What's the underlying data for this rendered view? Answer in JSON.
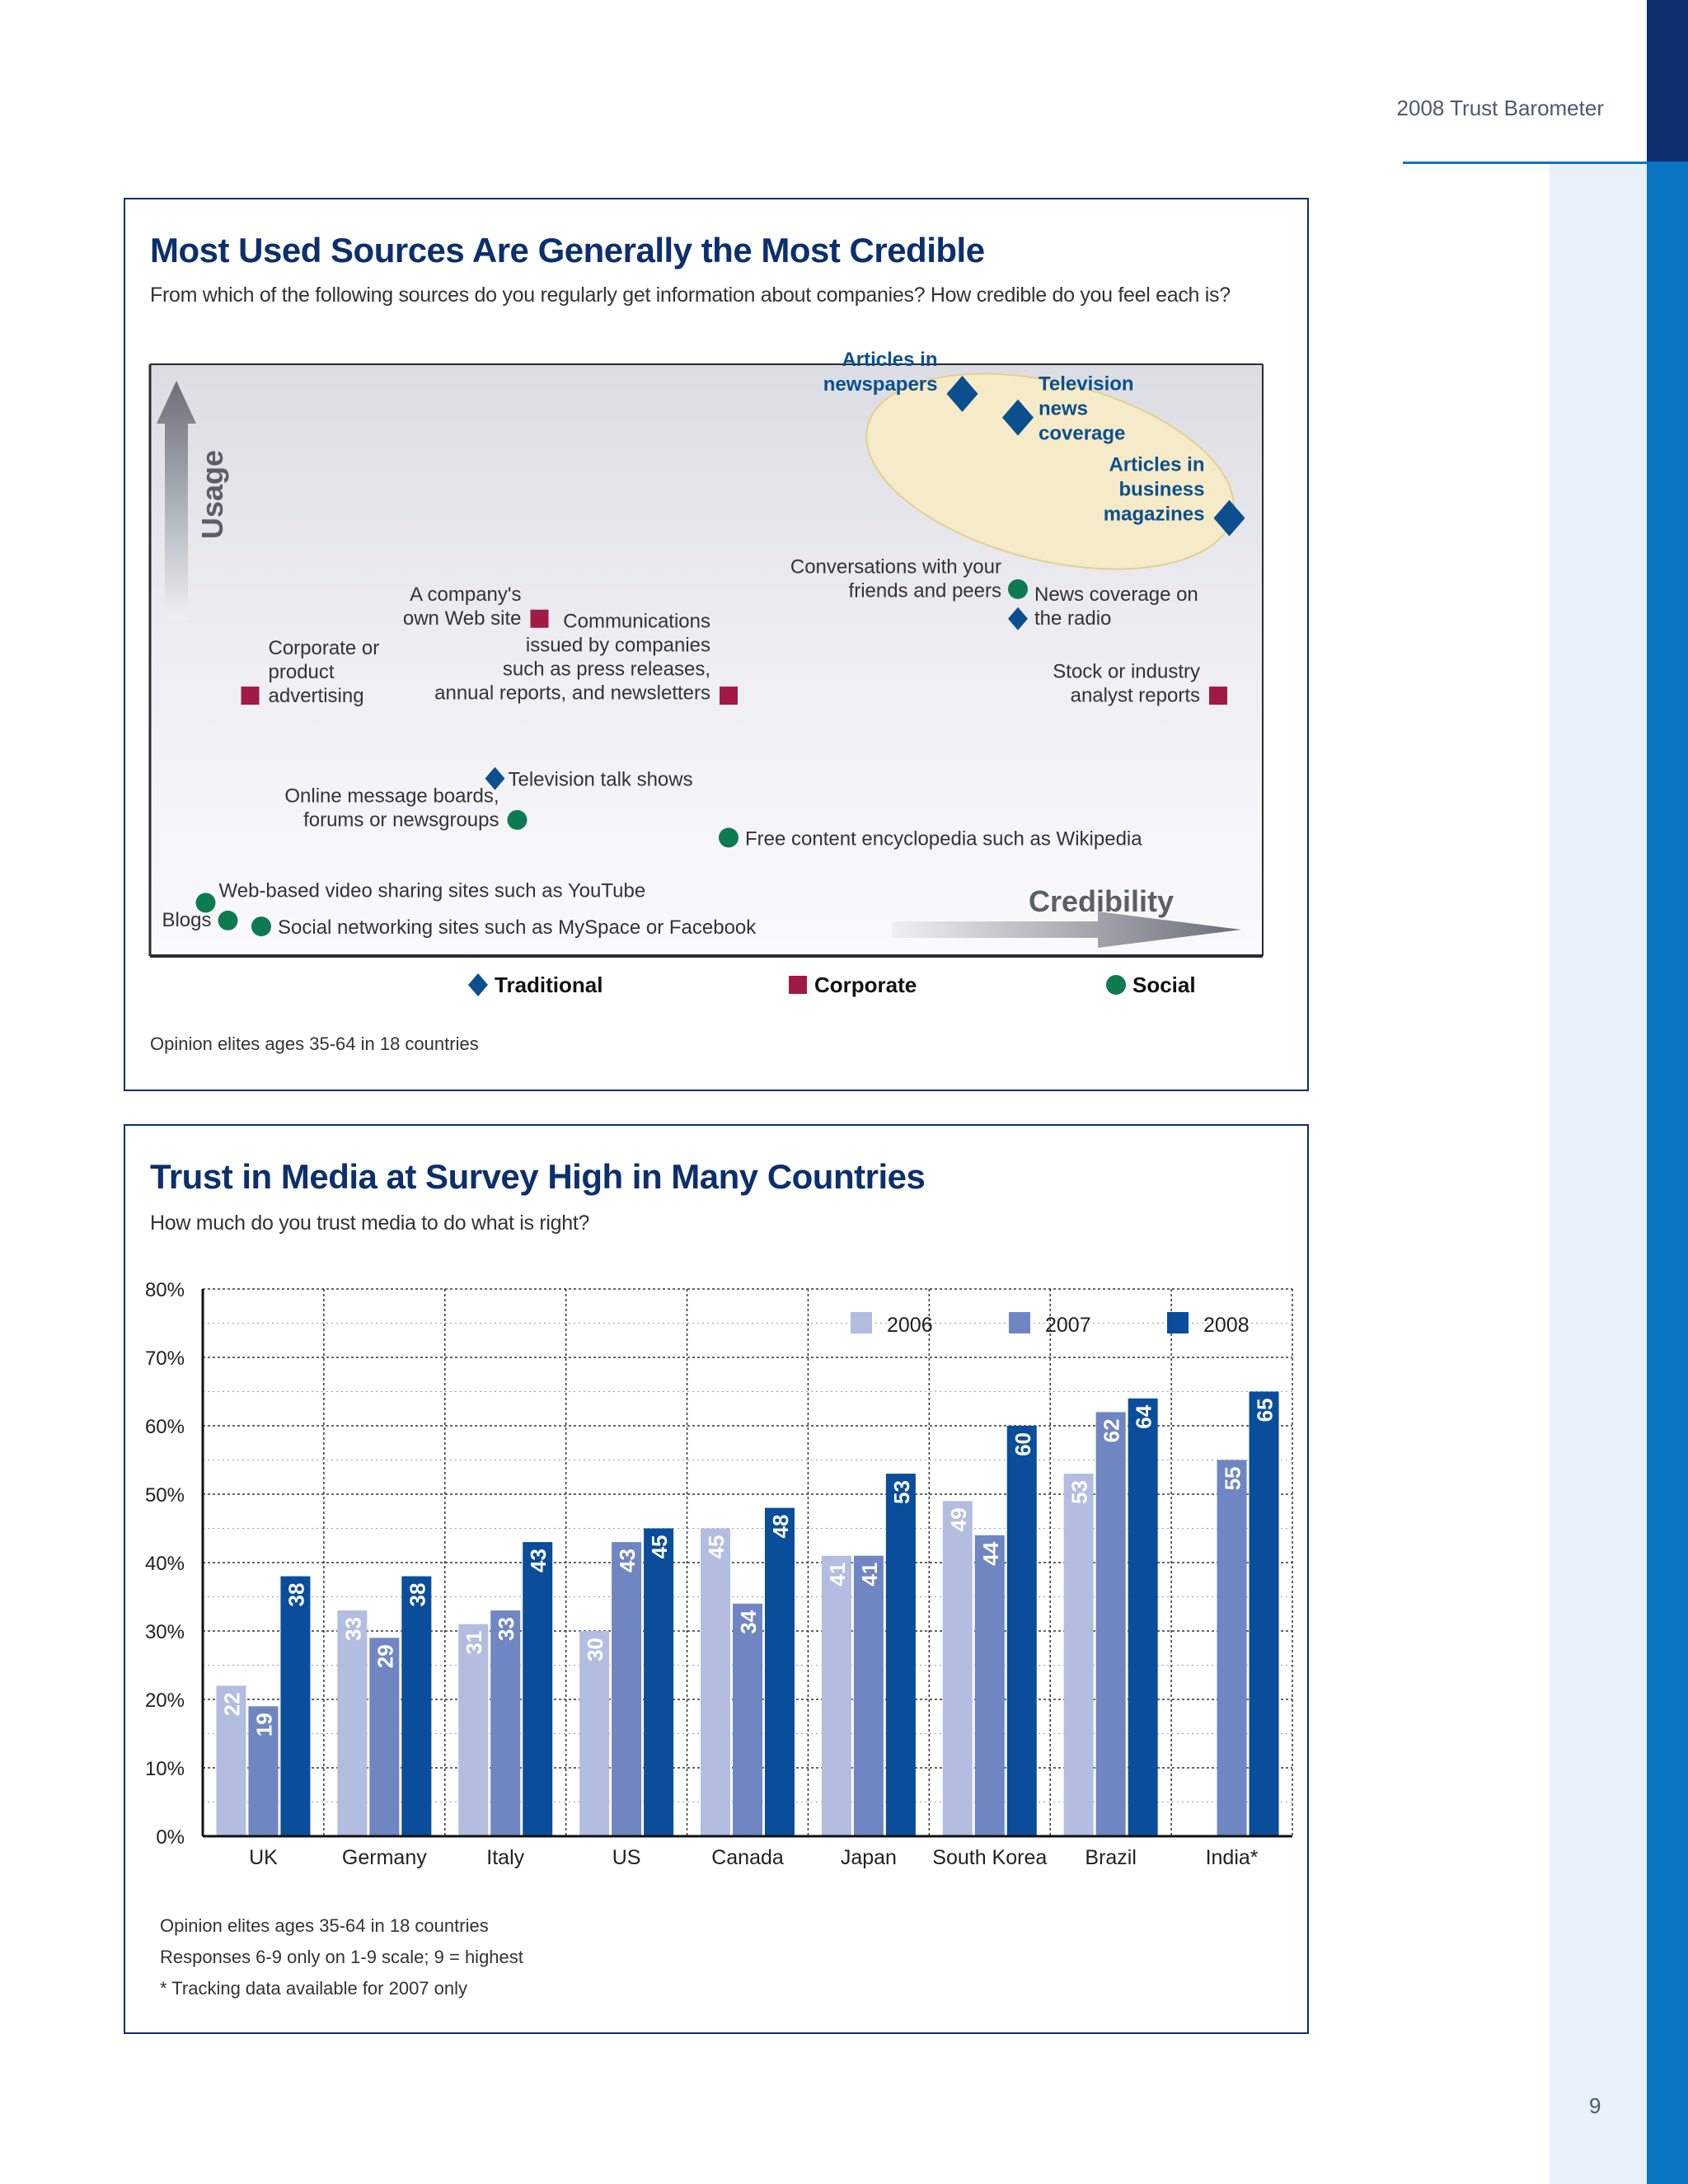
{
  "header": {
    "title": "2008 Trust Barometer",
    "page_number": "9"
  },
  "colors": {
    "navy": "#0c2f6e",
    "blue": "#0a76c4",
    "traditional": "#0c4f8f",
    "corporate": "#a01a45",
    "social": "#0e7a52",
    "bar_2006": "#b3bde0",
    "bar_2007": "#6f86c2",
    "bar_2008": "#0a4d9a",
    "highlight": "#f6ebc8"
  },
  "figure1": {
    "title": "Most Used Sources Are Generally the Most Credible",
    "subtitle": "From which of the following sources do you regularly get information about companies? How credible do you feel each is?",
    "y_axis_label": "Usage",
    "x_axis_label": "Credibility",
    "legend": [
      {
        "label": "Traditional",
        "shape": "diamond"
      },
      {
        "label": "Corporate",
        "shape": "square"
      },
      {
        "label": "Social",
        "shape": "circle"
      }
    ],
    "note": "Opinion elites ages 35-64 in 18 countries"
  },
  "chart_data": [
    {
      "type": "scatter",
      "title": "Most Used Sources Are Generally the Most Credible",
      "xlabel": "Credibility",
      "ylabel": "Usage",
      "xlim": [
        0,
        100
      ],
      "ylim": [
        0,
        100
      ],
      "points": [
        {
          "label": "Articles in newspapers",
          "category": "Traditional",
          "x": 73,
          "y": 95,
          "highlight": true
        },
        {
          "label": "Television news coverage",
          "category": "Traditional",
          "x": 78,
          "y": 91,
          "highlight": true
        },
        {
          "label": "Articles in business magazines",
          "category": "Traditional",
          "x": 97,
          "y": 74,
          "highlight": true
        },
        {
          "label": "Conversations with your friends and peers",
          "category": "Social",
          "x": 78,
          "y": 62
        },
        {
          "label": "News coverage on the radio",
          "category": "Traditional",
          "x": 78,
          "y": 57
        },
        {
          "label": "A company's own Web site",
          "category": "Corporate",
          "x": 35,
          "y": 57
        },
        {
          "label": "Corporate or product advertising",
          "category": "Corporate",
          "x": 9,
          "y": 44
        },
        {
          "label": "Communications issued by companies such as press releases, annual reports, and newsletters",
          "category": "Corporate",
          "x": 52,
          "y": 44
        },
        {
          "label": "Stock or industry analyst reports",
          "category": "Corporate",
          "x": 96,
          "y": 44
        },
        {
          "label": "Television talk shows",
          "category": "Traditional",
          "x": 31,
          "y": 30
        },
        {
          "label": "Online message boards, forums or newsgroups",
          "category": "Social",
          "x": 33,
          "y": 23
        },
        {
          "label": "Free content encyclopedia such as Wikipedia",
          "category": "Social",
          "x": 52,
          "y": 20
        },
        {
          "label": "Web-based video sharing sites such as YouTube",
          "category": "Social",
          "x": 5,
          "y": 9
        },
        {
          "label": "Blogs",
          "category": "Social",
          "x": 7,
          "y": 6
        },
        {
          "label": "Social networking sites such as MySpace or Facebook",
          "category": "Social",
          "x": 10,
          "y": 5
        }
      ]
    },
    {
      "type": "bar",
      "title": "Trust in Media at Survey High in Many Countries",
      "subtitle": "How much do you trust media to do what is right?",
      "categories": [
        "UK",
        "Germany",
        "Italy",
        "US",
        "Canada",
        "Japan",
        "South Korea",
        "Brazil",
        "India*"
      ],
      "series": [
        {
          "name": "2006",
          "values": [
            22,
            33,
            31,
            30,
            45,
            41,
            49,
            53,
            null
          ]
        },
        {
          "name": "2007",
          "values": [
            19,
            29,
            33,
            43,
            34,
            41,
            44,
            62,
            55
          ]
        },
        {
          "name": "2008",
          "values": [
            38,
            38,
            43,
            45,
            48,
            53,
            60,
            64,
            65
          ]
        }
      ],
      "ylim": [
        0,
        80
      ],
      "yticks": [
        "0%",
        "10%",
        "20%",
        "30%",
        "40%",
        "50%",
        "60%",
        "70%",
        "80%"
      ],
      "grid": true,
      "legend_position": "top-right"
    }
  ],
  "figure2": {
    "title": "Trust in Media at Survey High in Many Countries",
    "subtitle": "How much do you trust media to do what is right?",
    "notes": [
      "Opinion elites ages 35-64 in 18 countries",
      "Responses 6-9 only on 1-9 scale; 9 = highest",
      "* Tracking data available for 2007 only"
    ]
  }
}
